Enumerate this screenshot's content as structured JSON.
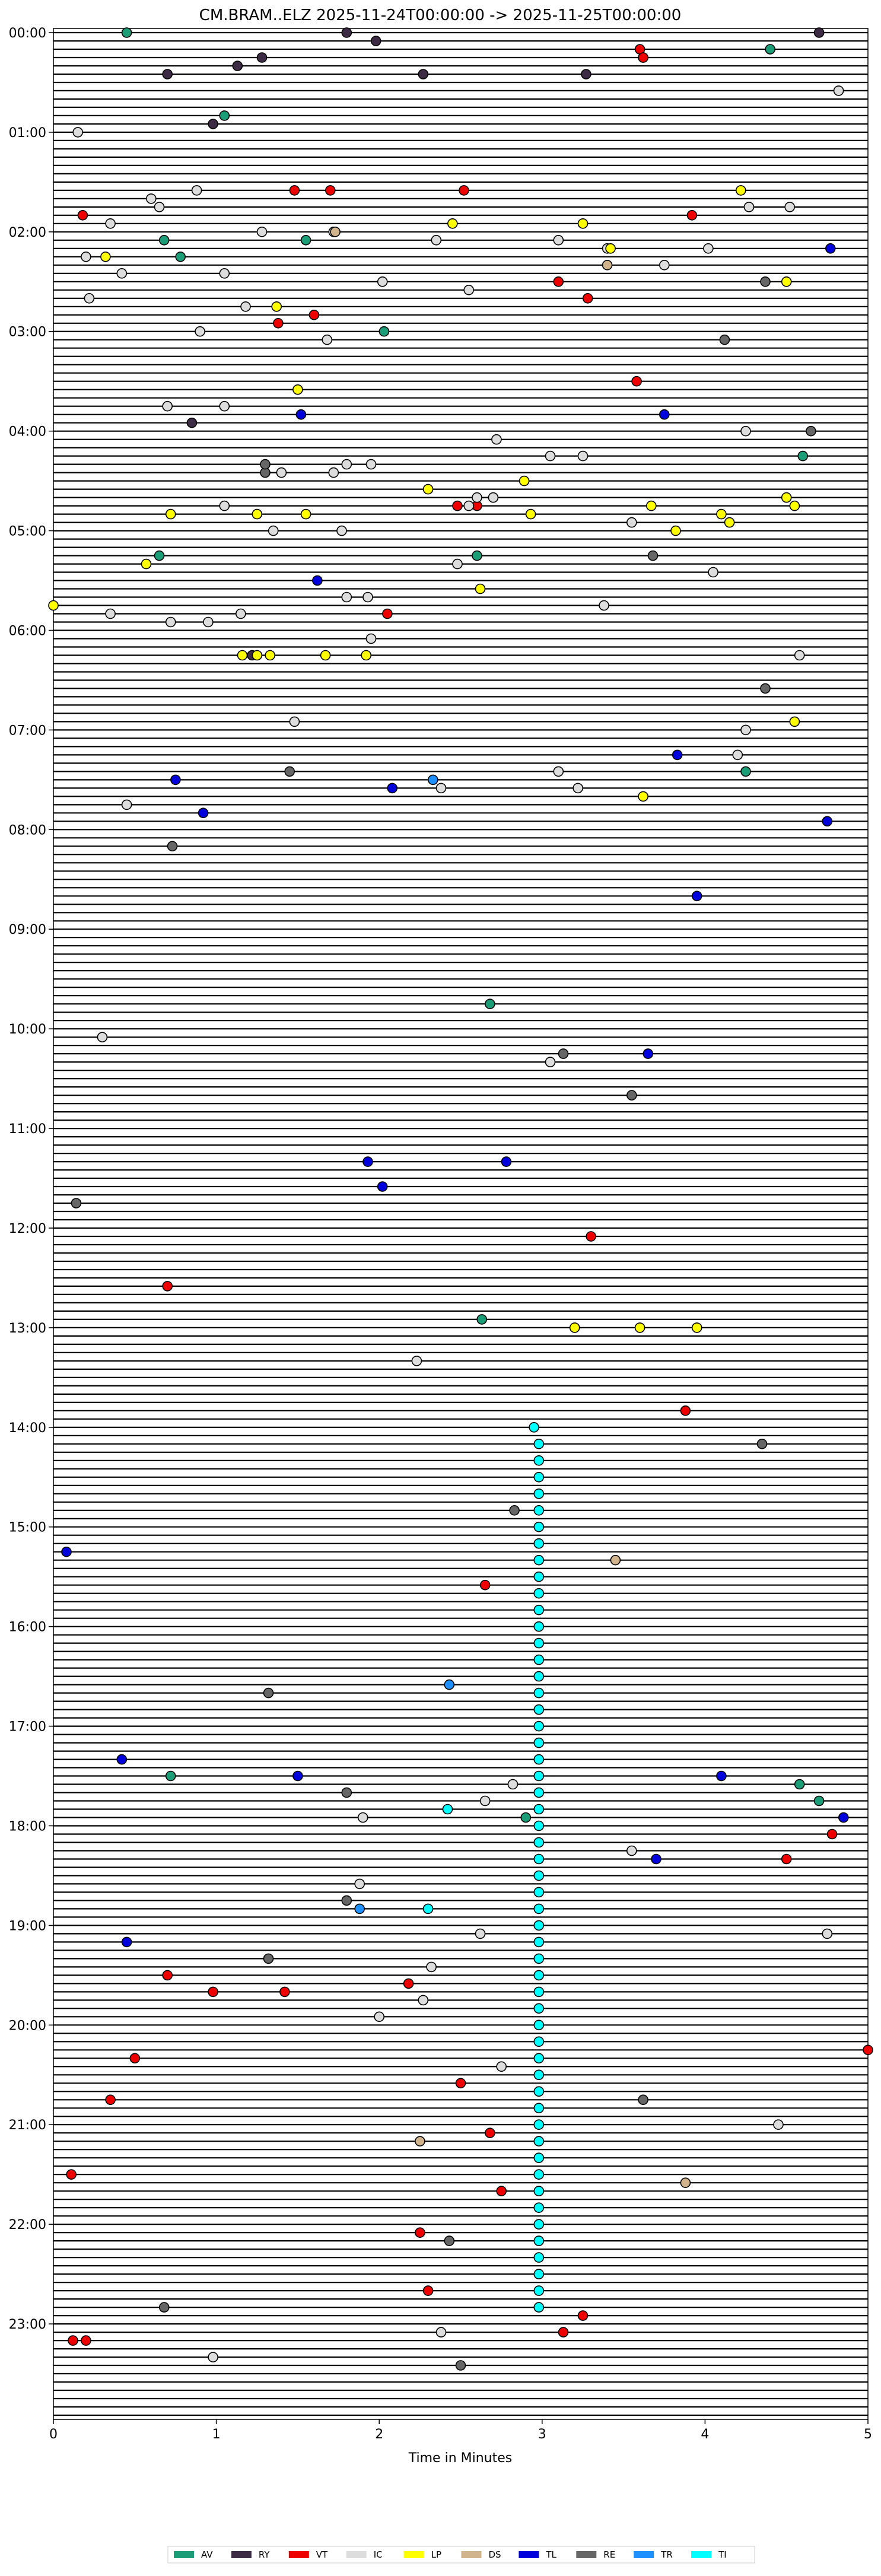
{
  "chart_data": {
    "type": "scatter",
    "title": "CM.BRAM..ELZ  2025-11-24T00:00:00 -> 2025-11-25T00:00:00",
    "xlabel": "Time in Minutes",
    "ylabel": "",
    "xlim": [
      0,
      5
    ],
    "x_ticks": [
      "0",
      "1",
      "2",
      "3",
      "4",
      "5"
    ],
    "y_ticks": [
      "00:00",
      "01:00",
      "02:00",
      "03:00",
      "04:00",
      "05:00",
      "06:00",
      "07:00",
      "08:00",
      "09:00",
      "10:00",
      "11:00",
      "12:00",
      "13:00",
      "14:00",
      "15:00",
      "16:00",
      "17:00",
      "18:00",
      "19:00",
      "20:00",
      "21:00",
      "22:00",
      "23:00"
    ],
    "trace_rows": 288,
    "row_minutes": 5,
    "grid": false,
    "legend_position": "bottom-center",
    "legend": [
      {
        "code": "AV",
        "color": "#1b9e77"
      },
      {
        "code": "RY",
        "color": "#3d2b45"
      },
      {
        "code": "VT",
        "color": "#ee0000"
      },
      {
        "code": "IC",
        "color": "#dddddd"
      },
      {
        "code": "LP",
        "color": "#ffff00"
      },
      {
        "code": "DS",
        "color": "#d2b48c"
      },
      {
        "code": "TL",
        "color": "#0000dd"
      },
      {
        "code": "RE",
        "color": "#666666"
      },
      {
        "code": "TR",
        "color": "#1e90ff"
      },
      {
        "code": "TI",
        "color": "#00ffff"
      }
    ],
    "series": [
      {
        "name": "AV",
        "points": [
          [
            0.45,
            0
          ],
          [
            4.4,
            2
          ],
          [
            1.05,
            10
          ],
          [
            0.68,
            25
          ],
          [
            1.55,
            25
          ],
          [
            0.78,
            27
          ],
          [
            2.03,
            36
          ],
          [
            4.6,
            51
          ],
          [
            0.65,
            63
          ],
          [
            2.6,
            63
          ],
          [
            4.25,
            89
          ],
          [
            2.68,
            117
          ],
          [
            2.63,
            155
          ],
          [
            0.72,
            210
          ],
          [
            4.58,
            211
          ],
          [
            4.7,
            213
          ],
          [
            2.9,
            215
          ]
        ]
      },
      {
        "name": "RY",
        "points": [
          [
            1.8,
            0
          ],
          [
            4.7,
            0
          ],
          [
            1.98,
            1
          ],
          [
            1.28,
            3
          ],
          [
            3.62,
            3
          ],
          [
            1.13,
            4
          ],
          [
            0.7,
            5
          ],
          [
            2.27,
            5
          ],
          [
            3.27,
            5
          ],
          [
            0.98,
            11
          ],
          [
            0.85,
            47
          ],
          [
            1.22,
            75
          ]
        ]
      },
      {
        "name": "VT",
        "points": [
          [
            3.6,
            2
          ],
          [
            3.62,
            3
          ],
          [
            1.48,
            19
          ],
          [
            1.7,
            19
          ],
          [
            2.52,
            19
          ],
          [
            0.18,
            22
          ],
          [
            3.92,
            22
          ],
          [
            3.1,
            30
          ],
          [
            3.28,
            32
          ],
          [
            1.6,
            34
          ],
          [
            1.38,
            35
          ],
          [
            3.58,
            42
          ],
          [
            2.48,
            57
          ],
          [
            2.6,
            57
          ],
          [
            2.05,
            70
          ],
          [
            3.3,
            145
          ],
          [
            0.7,
            151
          ],
          [
            3.88,
            166
          ],
          [
            2.65,
            187
          ],
          [
            5.0,
            243
          ],
          [
            0.5,
            244
          ],
          [
            2.68,
            253
          ],
          [
            4.78,
            217
          ],
          [
            4.5,
            220
          ],
          [
            0.7,
            234
          ],
          [
            0.98,
            236
          ],
          [
            1.42,
            236
          ],
          [
            2.18,
            235
          ],
          [
            2.5,
            247
          ],
          [
            0.35,
            249
          ],
          [
            2.75,
            260
          ],
          [
            2.25,
            265
          ],
          [
            2.3,
            272
          ],
          [
            3.25,
            275
          ],
          [
            3.13,
            277
          ],
          [
            0.12,
            278
          ],
          [
            0.2,
            278
          ],
          [
            0.11,
            258
          ]
        ]
      },
      {
        "name": "IC",
        "points": [
          [
            0.15,
            12
          ],
          [
            0.6,
            20
          ],
          [
            0.88,
            19
          ],
          [
            0.35,
            23
          ],
          [
            1.28,
            24
          ],
          [
            1.72,
            24
          ],
          [
            2.35,
            25
          ],
          [
            3.1,
            25
          ],
          [
            3.4,
            26
          ],
          [
            4.02,
            26
          ],
          [
            0.2,
            27
          ],
          [
            0.42,
            29
          ],
          [
            1.05,
            29
          ],
          [
            3.75,
            28
          ],
          [
            2.02,
            30
          ],
          [
            2.55,
            31
          ],
          [
            0.22,
            32
          ],
          [
            1.18,
            33
          ],
          [
            0.9,
            36
          ],
          [
            1.68,
            37
          ],
          [
            0.7,
            45
          ],
          [
            1.05,
            45
          ],
          [
            4.25,
            48
          ],
          [
            2.72,
            49
          ],
          [
            3.05,
            51
          ],
          [
            3.25,
            51
          ],
          [
            1.8,
            52
          ],
          [
            1.95,
            52
          ],
          [
            1.72,
            53
          ],
          [
            1.4,
            53
          ],
          [
            2.6,
            56
          ],
          [
            2.7,
            56
          ],
          [
            2.55,
            57
          ],
          [
            1.05,
            57
          ],
          [
            3.55,
            59
          ],
          [
            1.35,
            60
          ],
          [
            1.77,
            60
          ],
          [
            2.48,
            64
          ],
          [
            4.05,
            65
          ],
          [
            1.8,
            68
          ],
          [
            1.93,
            68
          ],
          [
            3.38,
            69
          ],
          [
            0.35,
            70
          ],
          [
            0.72,
            71
          ],
          [
            0.95,
            71
          ],
          [
            1.15,
            70
          ],
          [
            1.95,
            73
          ],
          [
            4.58,
            75
          ],
          [
            1.48,
            83
          ],
          [
            4.25,
            84
          ],
          [
            4.2,
            87
          ],
          [
            3.1,
            89
          ],
          [
            3.22,
            91
          ],
          [
            2.38,
            91
          ],
          [
            0.45,
            93
          ],
          [
            0.3,
            121
          ],
          [
            3.05,
            124
          ],
          [
            2.23,
            160
          ],
          [
            2.82,
            211
          ],
          [
            1.9,
            215
          ],
          [
            2.65,
            213
          ],
          [
            3.55,
            219
          ],
          [
            1.88,
            223
          ],
          [
            2.62,
            229
          ],
          [
            4.75,
            229
          ],
          [
            2.32,
            233
          ],
          [
            2.27,
            237
          ],
          [
            2.0,
            239
          ],
          [
            4.45,
            252
          ],
          [
            2.75,
            245
          ],
          [
            2.38,
            277
          ],
          [
            0.98,
            280
          ],
          [
            4.82,
            7
          ],
          [
            0.65,
            21
          ],
          [
            4.27,
            21
          ],
          [
            4.52,
            21
          ]
        ]
      },
      {
        "name": "LP",
        "points": [
          [
            4.22,
            19
          ],
          [
            2.45,
            23
          ],
          [
            3.25,
            23
          ],
          [
            3.42,
            26
          ],
          [
            0.32,
            27
          ],
          [
            4.5,
            30
          ],
          [
            1.37,
            33
          ],
          [
            1.5,
            43
          ],
          [
            2.3,
            55
          ],
          [
            2.89,
            54
          ],
          [
            0.72,
            58
          ],
          [
            1.25,
            58
          ],
          [
            1.55,
            58
          ],
          [
            2.93,
            58
          ],
          [
            3.67,
            57
          ],
          [
            4.1,
            58
          ],
          [
            4.15,
            59
          ],
          [
            3.82,
            60
          ],
          [
            4.5,
            56
          ],
          [
            4.55,
            57
          ],
          [
            0.57,
            64
          ],
          [
            2.62,
            67
          ],
          [
            0.0,
            69
          ],
          [
            1.16,
            75
          ],
          [
            1.25,
            75
          ],
          [
            1.33,
            75
          ],
          [
            1.67,
            75
          ],
          [
            1.92,
            75
          ],
          [
            4.55,
            83
          ],
          [
            3.62,
            92
          ],
          [
            3.2,
            156
          ],
          [
            3.6,
            156
          ],
          [
            3.95,
            156
          ]
        ]
      },
      {
        "name": "DS",
        "points": [
          [
            3.4,
            28
          ],
          [
            1.73,
            24
          ],
          [
            3.45,
            184
          ],
          [
            3.88,
            259
          ],
          [
            2.25,
            254
          ]
        ]
      },
      {
        "name": "TL",
        "points": [
          [
            4.77,
            26
          ],
          [
            1.52,
            46
          ],
          [
            3.75,
            46
          ],
          [
            1.62,
            66
          ],
          [
            3.83,
            87
          ],
          [
            0.75,
            90
          ],
          [
            2.08,
            91
          ],
          [
            0.92,
            94
          ],
          [
            4.75,
            95
          ],
          [
            3.95,
            104
          ],
          [
            3.65,
            123
          ],
          [
            1.93,
            136
          ],
          [
            2.78,
            136
          ],
          [
            2.02,
            139
          ],
          [
            0.08,
            183
          ],
          [
            1.5,
            210
          ],
          [
            0.42,
            208
          ],
          [
            4.1,
            210
          ],
          [
            3.7,
            220
          ],
          [
            4.85,
            215
          ],
          [
            0.45,
            230
          ]
        ]
      },
      {
        "name": "RE",
        "points": [
          [
            4.12,
            37
          ],
          [
            4.37,
            30
          ],
          [
            1.3,
            53
          ],
          [
            4.65,
            48
          ],
          [
            1.3,
            52
          ],
          [
            3.68,
            63
          ],
          [
            4.37,
            79
          ],
          [
            1.45,
            89
          ],
          [
            0.73,
            98
          ],
          [
            3.13,
            123
          ],
          [
            3.55,
            128
          ],
          [
            0.14,
            141
          ],
          [
            2.83,
            178
          ],
          [
            1.32,
            200
          ],
          [
            1.8,
            212
          ],
          [
            3.62,
            249
          ],
          [
            1.32,
            232
          ],
          [
            0.68,
            274
          ],
          [
            2.5,
            281
          ],
          [
            4.35,
            170
          ],
          [
            1.8,
            225
          ],
          [
            2.43,
            266
          ]
        ]
      },
      {
        "name": "TR",
        "points": [
          [
            2.33,
            90
          ],
          [
            1.88,
            226
          ],
          [
            2.43,
            199
          ]
        ]
      },
      {
        "name": "TI",
        "points": [
          [
            2.95,
            168
          ],
          [
            2.98,
            170
          ],
          [
            2.98,
            172
          ],
          [
            2.98,
            174
          ],
          [
            2.98,
            176
          ],
          [
            2.98,
            178
          ],
          [
            2.98,
            180
          ],
          [
            2.98,
            182
          ],
          [
            2.98,
            184
          ],
          [
            2.98,
            186
          ],
          [
            2.98,
            188
          ],
          [
            2.98,
            190
          ],
          [
            2.98,
            192
          ],
          [
            2.98,
            194
          ],
          [
            2.98,
            196
          ],
          [
            2.98,
            198
          ],
          [
            2.98,
            200
          ],
          [
            2.98,
            202
          ],
          [
            2.98,
            204
          ],
          [
            2.98,
            206
          ],
          [
            2.98,
            208
          ],
          [
            2.98,
            210
          ],
          [
            2.98,
            212
          ],
          [
            2.98,
            214
          ],
          [
            2.98,
            216
          ],
          [
            2.98,
            218
          ],
          [
            2.98,
            220
          ],
          [
            2.98,
            222
          ],
          [
            2.98,
            224
          ],
          [
            2.98,
            226
          ],
          [
            2.98,
            228
          ],
          [
            2.98,
            230
          ],
          [
            2.98,
            232
          ],
          [
            2.98,
            234
          ],
          [
            2.98,
            236
          ],
          [
            2.98,
            238
          ],
          [
            2.98,
            240
          ],
          [
            2.98,
            242
          ],
          [
            2.98,
            244
          ],
          [
            2.98,
            246
          ],
          [
            2.98,
            248
          ],
          [
            2.98,
            250
          ],
          [
            2.98,
            252
          ],
          [
            2.98,
            254
          ],
          [
            2.98,
            256
          ],
          [
            2.98,
            258
          ],
          [
            2.98,
            260
          ],
          [
            2.98,
            262
          ],
          [
            2.98,
            264
          ],
          [
            2.98,
            266
          ],
          [
            2.98,
            268
          ],
          [
            2.98,
            270
          ],
          [
            2.98,
            272
          ],
          [
            2.98,
            274
          ],
          [
            2.42,
            214
          ],
          [
            2.3,
            226
          ]
        ]
      }
    ]
  }
}
